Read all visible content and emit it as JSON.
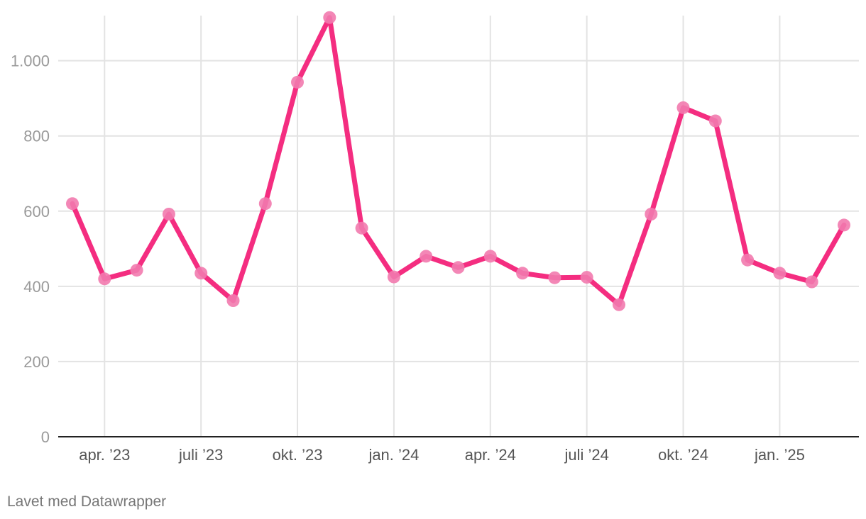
{
  "chart_data": {
    "type": "line",
    "x": [
      "2023-03",
      "2023-04",
      "2023-05",
      "2023-06",
      "2023-07",
      "2023-08",
      "2023-09",
      "2023-10",
      "2023-11",
      "2023-12",
      "2024-01",
      "2024-02",
      "2024-03",
      "2024-04",
      "2024-05",
      "2024-06",
      "2024-07",
      "2024-08",
      "2024-09",
      "2024-10",
      "2024-11",
      "2024-12",
      "2025-01",
      "2025-02",
      "2025-03"
    ],
    "series": [
      {
        "values": [
          620,
          420,
          443,
          592,
          435,
          362,
          620,
          943,
          1115,
          555,
          425,
          480,
          450,
          480,
          435,
          423,
          424,
          351,
          592,
          875,
          840,
          470,
          435,
          412,
          563
        ]
      }
    ],
    "ylim": [
      0,
      1120
    ],
    "yticks": [
      0,
      200,
      400,
      600,
      800,
      1000
    ],
    "ytick_labels": [
      "0",
      "200",
      "400",
      "600",
      "800",
      "1.000"
    ],
    "xticks": [
      "2023-04",
      "2023-07",
      "2023-10",
      "2024-01",
      "2024-04",
      "2024-07",
      "2024-10",
      "2025-01"
    ],
    "xtick_labels": [
      "apr. ’23",
      "juli ’23",
      "okt. ’23",
      "jan. ’24",
      "apr. ’24",
      "juli ’24",
      "okt. ’24",
      "jan. ’25"
    ],
    "grid": true,
    "line_color": "#f42d80",
    "marker_color": "#f27aae"
  },
  "credit": "Lavet med Datawrapper"
}
